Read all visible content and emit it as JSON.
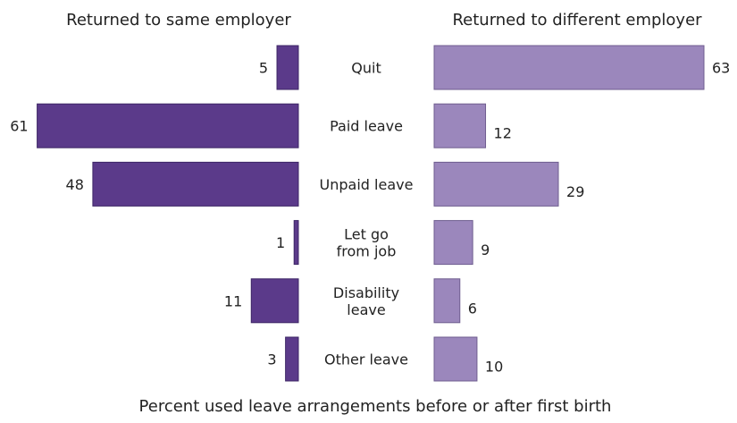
{
  "chart_data": {
    "type": "bar",
    "orientation": "horizontal-butterfly",
    "xlabel": "Percent used leave arrangements before or after first birth",
    "categories": [
      [
        "Quit"
      ],
      [
        "Paid leave"
      ],
      [
        "Unpaid leave"
      ],
      [
        "Let go",
        "from job"
      ],
      [
        "Disability",
        "leave"
      ],
      [
        "Other leave"
      ]
    ],
    "series": [
      {
        "name": "Returned to same employer",
        "values": [
          5,
          61,
          48,
          1,
          11,
          3
        ],
        "color": "#5b3a8a"
      },
      {
        "name": "Returned to different employer",
        "values": [
          63,
          12,
          29,
          9,
          6,
          10
        ],
        "color": "#9b87bc"
      }
    ],
    "xlim": [
      0,
      63
    ],
    "grid": false,
    "legend": "none"
  }
}
